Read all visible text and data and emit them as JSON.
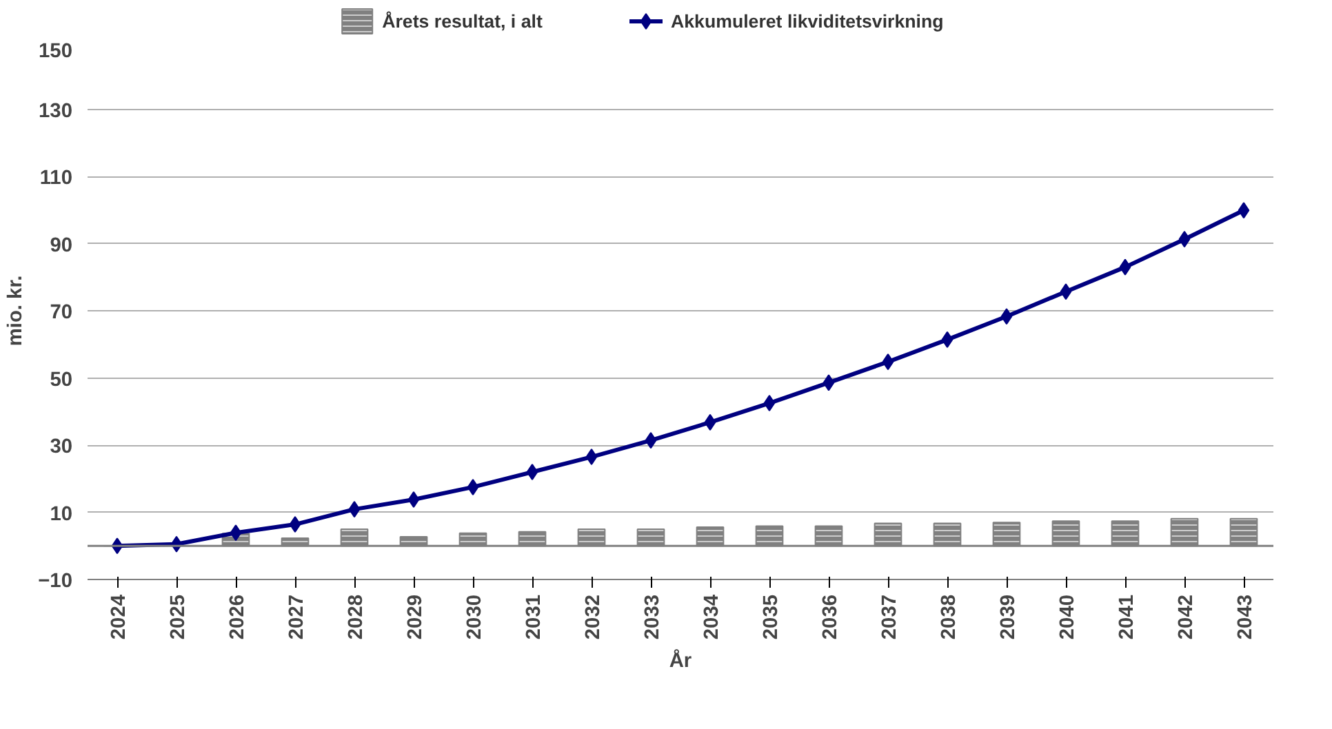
{
  "chart_data": {
    "type": "bar",
    "xlabel": "År",
    "ylabel": "mio. kr.",
    "categories": [
      "2024",
      "2025",
      "2026",
      "2027",
      "2028",
      "2029",
      "2030",
      "2031",
      "2032",
      "2033",
      "2034",
      "2035",
      "2036",
      "2037",
      "2038",
      "2039",
      "2040",
      "2041",
      "2042",
      "2043"
    ],
    "series": [
      {
        "name": "Årets resultat, i alt",
        "color": "#808080",
        "values": [
          0,
          0,
          3.7,
          2.3,
          5.0,
          2.7,
          3.8,
          4.2,
          5.0,
          5.0,
          5.6,
          5.9,
          5.9,
          6.7,
          6.7,
          7.0,
          7.4,
          7.4,
          8.1,
          8.1
        ]
      },
      {
        "name": "Akkumuleret likviditetsvirkning",
        "type": "line",
        "color": "#000080",
        "marker": "diamond",
        "values": [
          0,
          0.5,
          3.9,
          6.4,
          10.9,
          13.8,
          17.5,
          22,
          26.5,
          31.4,
          36.8,
          42.5,
          48.6,
          54.8,
          61.4,
          68.3,
          75.7,
          83,
          91.3,
          99.9
        ]
      }
    ],
    "ylim": [
      -10,
      150
    ],
    "yticks": [
      -10,
      10,
      30,
      50,
      70,
      90,
      110,
      130,
      150
    ],
    "grid": "y",
    "legend": "top",
    "ref_lines": [
      {
        "axis": "y",
        "value": 0,
        "color": "#808080"
      }
    ]
  }
}
